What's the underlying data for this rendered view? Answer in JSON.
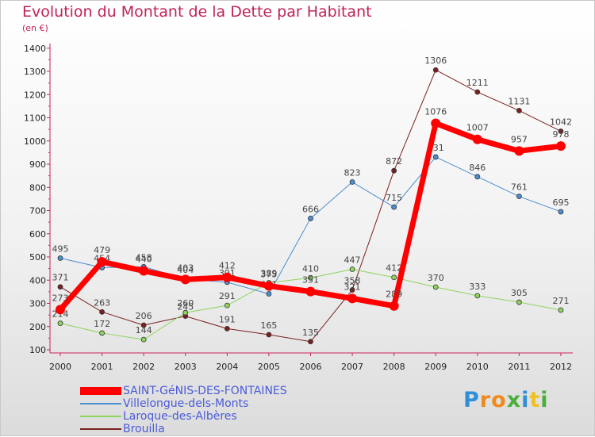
{
  "chart_data": {
    "type": "line",
    "title": "Evolution du Montant de la Dette par Habitant",
    "subtitle": "(en €)",
    "x": [
      "2000",
      "2001",
      "2002",
      "2003",
      "2004",
      "2005",
      "2006",
      "2007",
      "2008",
      "2009",
      "2010",
      "2011",
      "2012"
    ],
    "ylim": [
      100,
      1400
    ],
    "yticks": [
      100,
      200,
      300,
      400,
      500,
      600,
      700,
      800,
      900,
      1000,
      1100,
      1200,
      1300,
      1400
    ],
    "grid": false,
    "legend_position": "bottom-left",
    "series": [
      {
        "name": "Brouilla",
        "color": "#7b2020",
        "width": 1,
        "values": [
          371,
          263,
          206,
          245,
          191,
          165,
          135,
          358,
          872,
          1306,
          1211,
          1131,
          1042
        ]
      },
      {
        "name": "Laroque-des-Albères",
        "color": "#8ed45e",
        "width": 1,
        "values": [
          214,
          172,
          144,
          260,
          291,
          389,
          410,
          447,
          412,
          370,
          333,
          305,
          271
        ]
      },
      {
        "name": "Villelongue-dels-Monts",
        "color": "#4c8fd0",
        "width": 1,
        "values": [
          495,
          454,
          458,
          404,
          391,
          341,
          666,
          823,
          715,
          931,
          846,
          761,
          695
        ]
      },
      {
        "name": "SAINT-GéNIS-DES-FONTAINES",
        "color": "#ff0000",
        "width": 7,
        "values": [
          273,
          479,
          440,
          403,
          412,
          375,
          351,
          321,
          289,
          1076,
          1007,
          957,
          978
        ]
      }
    ]
  },
  "legend_order": [
    3,
    2,
    1,
    0
  ],
  "logo": {
    "letters": [
      "P",
      "r",
      "o",
      "x",
      "i",
      "t",
      "i"
    ],
    "colors": [
      "#2f8fd8",
      "#f08a1c",
      "#f08a1c",
      "#4cae3c",
      "#2f8fd8",
      "#f0c020",
      "#4cae3c"
    ]
  }
}
